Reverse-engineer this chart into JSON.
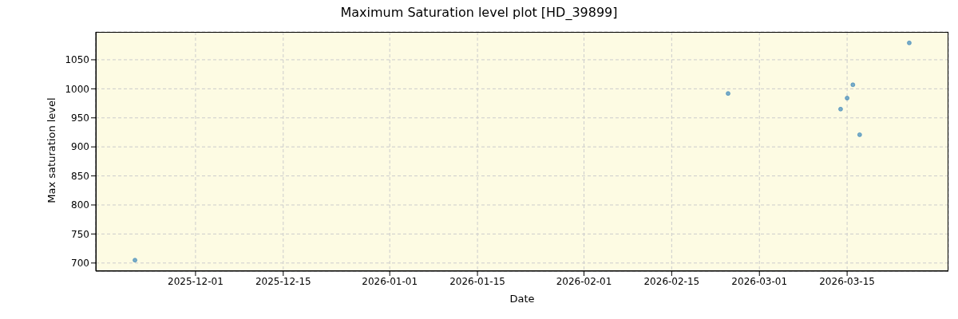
{
  "chart_data": {
    "type": "scatter",
    "title": "Maximum Saturation level plot [HD_39899]",
    "xlabel": "Date",
    "ylabel": "Max saturation level",
    "x": [
      "2025-11-21T08:00",
      "2026-02-24",
      "2026-03-13T23:00",
      "2026-03-15",
      "2026-03-15T22:00",
      "2026-03-17",
      "2026-03-24T22:00"
    ],
    "series": [
      {
        "color": "#1f77b4",
        "values": [
          705,
          992,
          965,
          984,
          1007,
          921,
          1079
        ]
      }
    ],
    "xlim": [
      "2025-11-15T02:00",
      "2026-03-31T04:00"
    ],
    "xticks": [
      "2025-12-01",
      "2025-12-15",
      "2026-01-01",
      "2026-01-15",
      "2026-02-01",
      "2026-02-15",
      "2026-03-01",
      "2026-03-15"
    ],
    "ylim": [
      686,
      1098
    ],
    "yticks": [
      700,
      750,
      800,
      850,
      900,
      950,
      1000,
      1050
    ],
    "grid": true,
    "marker": "circle"
  }
}
